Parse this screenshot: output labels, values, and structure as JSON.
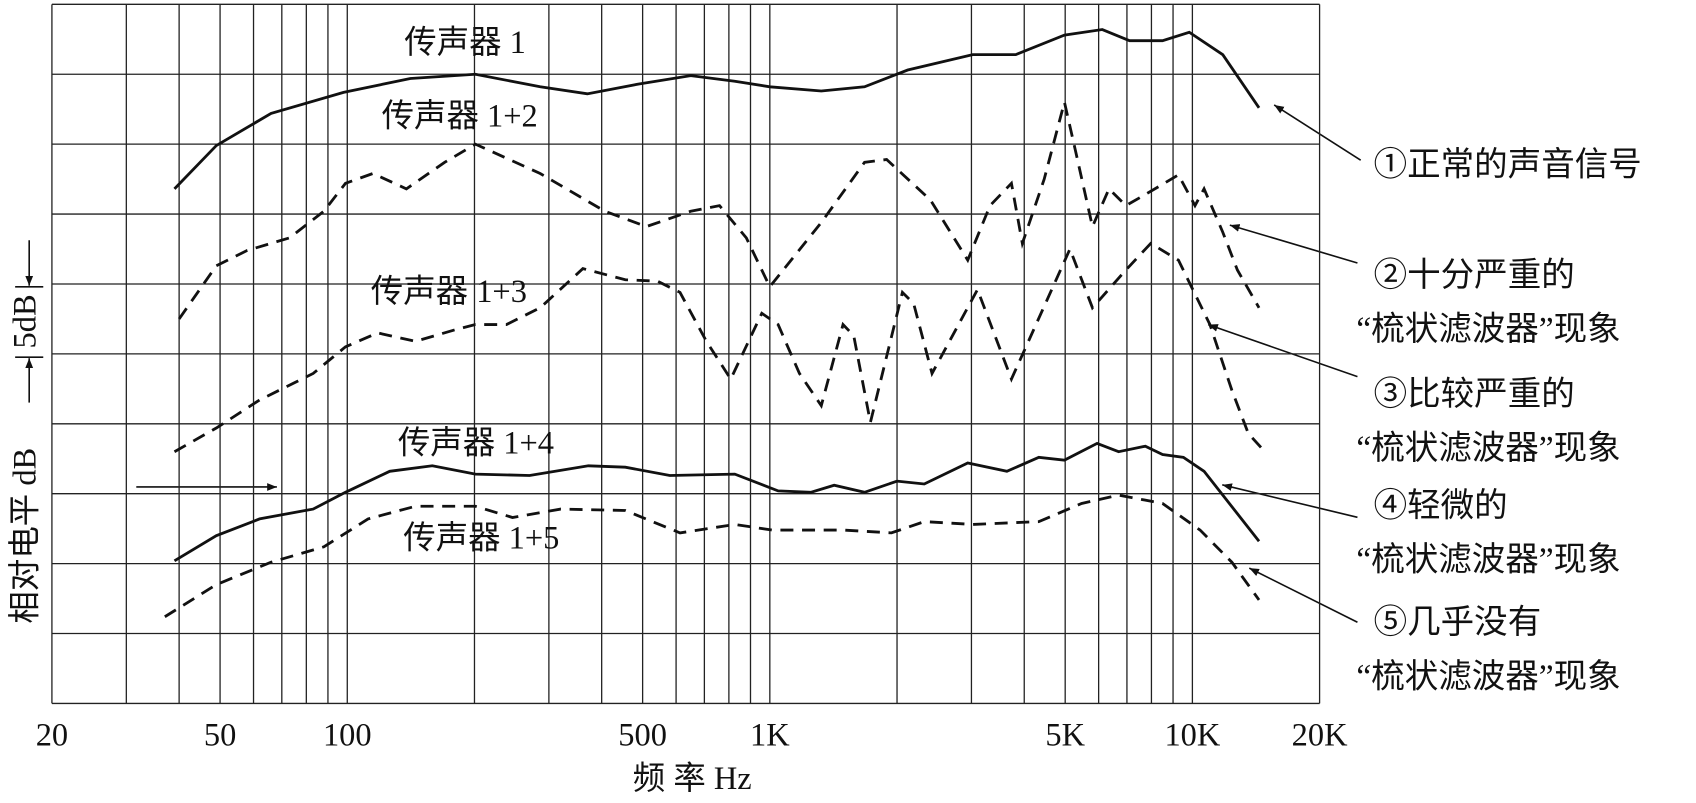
{
  "chart_data": {
    "type": "line",
    "x_label": "频 率 Hz",
    "y_label": "相对电平 dB",
    "scale_marker": "5dB",
    "xscale": "log",
    "grid": true,
    "xlim": [
      20,
      20000
    ],
    "ylim": [
      0,
      50
    ],
    "xticks": [
      {
        "value": 20,
        "label": "20"
      },
      {
        "value": 30,
        "label": null
      },
      {
        "value": 40,
        "label": null
      },
      {
        "value": 50,
        "label": "50"
      },
      {
        "value": 60,
        "label": null
      },
      {
        "value": 70,
        "label": null
      },
      {
        "value": 80,
        "label": null
      },
      {
        "value": 90,
        "label": null
      },
      {
        "value": 100,
        "label": "100"
      },
      {
        "value": 200,
        "label": null
      },
      {
        "value": 300,
        "label": null
      },
      {
        "value": 400,
        "label": null
      },
      {
        "value": 500,
        "label": "500"
      },
      {
        "value": 600,
        "label": null
      },
      {
        "value": 700,
        "label": null
      },
      {
        "value": 800,
        "label": null
      },
      {
        "value": 900,
        "label": null
      },
      {
        "value": 1000,
        "label": "1K"
      },
      {
        "value": 2000,
        "label": null
      },
      {
        "value": 3000,
        "label": null
      },
      {
        "value": 4000,
        "label": null
      },
      {
        "value": 5000,
        "label": "5K"
      },
      {
        "value": 6000,
        "label": null
      },
      {
        "value": 7000,
        "label": null
      },
      {
        "value": 8000,
        "label": null
      },
      {
        "value": 9000,
        "label": null
      },
      {
        "value": 10000,
        "label": "10K"
      },
      {
        "value": 20000,
        "label": "20K"
      }
    ],
    "yticks": [
      0,
      5,
      10,
      15,
      20,
      25,
      30,
      35,
      40,
      45,
      50
    ],
    "series": [
      {
        "name": "传声器 1",
        "color": "#111111",
        "style": "solid",
        "x": [
          39,
          49,
          66,
          98,
          141,
          201,
          286,
          370,
          490,
          650,
          826,
          1000,
          1324,
          1676,
          2120,
          3020,
          3820,
          4980,
          6120,
          7100,
          8500,
          9830,
          11800,
          14380
        ],
        "values": [
          36.8,
          39.9,
          42.2,
          43.7,
          44.7,
          45.0,
          44.1,
          43.6,
          44.3,
          44.9,
          44.5,
          44.1,
          43.8,
          44.1,
          45.3,
          46.4,
          46.4,
          47.8,
          48.2,
          47.4,
          47.4,
          48.0,
          46.4,
          42.6
        ]
      },
      {
        "name": "传声器 1+2",
        "color": "#111111",
        "style": "dashed",
        "x": [
          40,
          49,
          58,
          73,
          88,
          99,
          115,
          138,
          170,
          201,
          286,
          407,
          510,
          650,
          760,
          880,
          1000,
          1324,
          1676,
          1890,
          2400,
          2940,
          3320,
          3730,
          3960,
          4460,
          4980,
          5290,
          5800,
          6350,
          6960,
          7740,
          9270,
          10140,
          10660,
          11800,
          12780,
          14380
        ],
        "values": [
          27.5,
          31.3,
          32.4,
          33.3,
          35.2,
          37.2,
          37.9,
          36.8,
          38.7,
          40.0,
          37.9,
          35.2,
          34.1,
          35.2,
          35.6,
          33.3,
          29.8,
          34.4,
          38.7,
          38.9,
          36.0,
          31.7,
          35.6,
          37.2,
          32.9,
          37.5,
          43.0,
          39.5,
          34.1,
          36.8,
          35.6,
          36.4,
          37.8,
          35.6,
          36.8,
          33.7,
          31.0,
          28.3
        ]
      },
      {
        "name": "传声器 1+3",
        "color": "#111111",
        "style": "dashed",
        "x": [
          39,
          49,
          62,
          83,
          99,
          118,
          145,
          179,
          201,
          238,
          286,
          361,
          455,
          542,
          613,
          708,
          808,
          957,
          1046,
          1175,
          1324,
          1490,
          1580,
          1730,
          2060,
          2190,
          2420,
          3100,
          3730,
          5130,
          5800,
          6960,
          7970,
          9270,
          11000,
          12400,
          13560,
          14840
        ],
        "values": [
          18.0,
          19.7,
          21.7,
          23.6,
          25.5,
          26.5,
          25.9,
          26.7,
          27.1,
          27.1,
          28.3,
          31.1,
          30.3,
          30.2,
          29.4,
          25.9,
          23.2,
          27.9,
          27.1,
          23.6,
          21.3,
          27.1,
          26.3,
          20.1,
          29.4,
          28.6,
          23.6,
          29.6,
          23.2,
          32.5,
          28.3,
          31.0,
          32.9,
          31.7,
          27.1,
          22.4,
          19.3,
          18.0
        ]
      },
      {
        "name": "传声器 1+4",
        "color": "#111111",
        "style": "solid",
        "x": [
          39,
          49,
          62,
          83,
          99,
          126,
          159,
          201,
          270,
          372,
          455,
          580,
          826,
          1046,
          1250,
          1420,
          1676,
          2000,
          2320,
          2940,
          3640,
          4330,
          4980,
          5950,
          6690,
          7740,
          8500,
          9520,
          10660,
          14380
        ],
        "values": [
          10.2,
          12.0,
          13.2,
          13.9,
          15.1,
          16.6,
          17.0,
          16.4,
          16.3,
          17.0,
          16.9,
          16.3,
          16.4,
          15.2,
          15.1,
          15.6,
          15.1,
          15.9,
          15.7,
          17.2,
          16.6,
          17.6,
          17.4,
          18.6,
          18.0,
          18.4,
          17.8,
          17.6,
          16.6,
          11.6
        ]
      },
      {
        "name": "传声器 1+5",
        "color": "#111111",
        "style": "dashed",
        "x": [
          37,
          49,
          66,
          88,
          112,
          145,
          201,
          246,
          320,
          455,
          613,
          826,
          1012,
          1490,
          1940,
          2320,
          3020,
          4330,
          5470,
          6690,
          8500,
          10430,
          12400,
          14380
        ],
        "values": [
          6.2,
          8.5,
          10.1,
          11.2,
          13.2,
          14.1,
          14.1,
          13.3,
          13.9,
          13.8,
          12.2,
          12.8,
          12.4,
          12.4,
          12.2,
          13.0,
          12.8,
          13.0,
          14.3,
          14.9,
          14.3,
          12.4,
          10.1,
          7.4
        ]
      }
    ],
    "annotations": [
      {
        "lines": [
          "①正常的声音信号"
        ]
      },
      {
        "lines": [
          "②十分严重的",
          "“梳状滤波器”现象"
        ]
      },
      {
        "lines": [
          "③比较严重的",
          "“梳状滤波器”现象"
        ]
      },
      {
        "lines": [
          "④轻微的",
          "“梳状滤波器”现象"
        ]
      },
      {
        "lines": [
          "⑤几乎没有",
          "“梳状滤波器”现象"
        ]
      }
    ]
  }
}
